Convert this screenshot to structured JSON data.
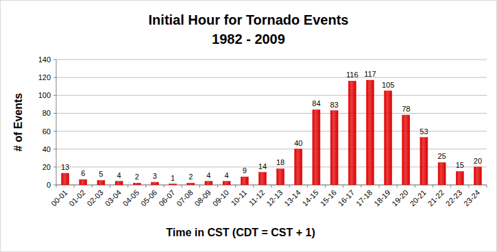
{
  "chart_data": {
    "type": "bar",
    "title": "Initial Hour for Tornado Events",
    "subtitle": "1982 - 2009",
    "x_label": "Time in CST (CDT = CST + 1)",
    "y_label": "# of Events",
    "categories": [
      "00-01",
      "01-02",
      "02-03",
      "03-04",
      "04-05",
      "05-06",
      "06-07",
      "07-08",
      "08-09",
      "09-10",
      "10-11",
      "11-12",
      "12-13",
      "13-14",
      "14-15",
      "15-16",
      "16-17",
      "17-18",
      "18-19",
      "19-20",
      "20-21",
      "21-22",
      "22-23",
      "23-24"
    ],
    "values": [
      13,
      6,
      5,
      4,
      2,
      3,
      1,
      2,
      4,
      4,
      9,
      14,
      18,
      40,
      84,
      83,
      116,
      117,
      105,
      78,
      53,
      25,
      15,
      20
    ],
    "color": "#e00000",
    "ylim": [
      0,
      140
    ],
    "yticks": [
      0,
      20,
      40,
      60,
      80,
      100,
      120,
      140
    ],
    "grid": true,
    "data_labels": true
  }
}
